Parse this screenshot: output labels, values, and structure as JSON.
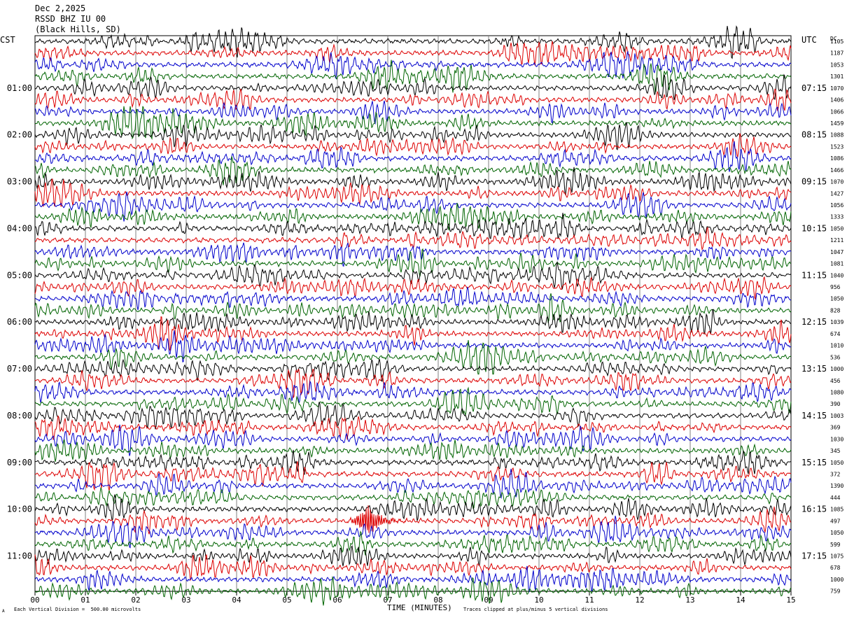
{
  "header": {
    "date": "Dec 2,2025",
    "station": "RSSD BHZ IU 00",
    "location": "(Black Hills, SD)"
  },
  "left_axis_label": "CST",
  "right_axis_label": "UTC",
  "right_top_label": "DC",
  "footer": {
    "scale_note": "Each Vertical Division =  500.00 microvolts",
    "clip_note": "Traces clipped at plus/minus 5 vertical divisions",
    "corner_mark": "A"
  },
  "colors": {
    "cycle": [
      "#000000",
      "#dd0000",
      "#0000cc",
      "#006400"
    ],
    "grid": "#808080"
  },
  "chart_data": {
    "type": "line",
    "subtype": "helicorder",
    "xlabel": "TIME (MINUTES)",
    "x_ticks": [
      "00",
      "01",
      "02",
      "03",
      "04",
      "05",
      "06",
      "07",
      "08",
      "09",
      "10",
      "11",
      "12",
      "13",
      "14",
      "15"
    ],
    "xlim": [
      0,
      15
    ],
    "trace_count": 48,
    "minutes_per_trace": 15,
    "left_hour_labels": [
      "01:00",
      "02:00",
      "03:00",
      "04:00",
      "05:00",
      "06:00",
      "07:00",
      "08:00",
      "09:00",
      "10:00",
      "11:00"
    ],
    "right_hour_labels": [
      "07:15",
      "08:15",
      "09:15",
      "10:15",
      "11:15",
      "12:15",
      "13:15",
      "14:15",
      "15:15",
      "16:15",
      "17:15"
    ],
    "hour_label_start_trace": 4,
    "dc_offsets": [
      "1105",
      "1187",
      "1053",
      "1301",
      "1070",
      "1406",
      "1066",
      "1459",
      "1088",
      "1523",
      "1086",
      "1466",
      "1070",
      "1427",
      "1056",
      "1333",
      "1050",
      "1211",
      "1047",
      "1081",
      "1040",
      "956",
      "1050",
      "828",
      "1039",
      "674",
      "1010",
      "536",
      "1000",
      "456",
      "1080",
      "390",
      "1003",
      "369",
      "1030",
      "345",
      "1050",
      "372",
      "1390",
      "444",
      "1085",
      "497",
      "1050",
      "599",
      "1075",
      "678",
      "1000",
      "759"
    ],
    "event": {
      "trace": 41,
      "minute_start": 6.1,
      "minute_peak": 6.6,
      "minute_end": 7.4
    }
  }
}
